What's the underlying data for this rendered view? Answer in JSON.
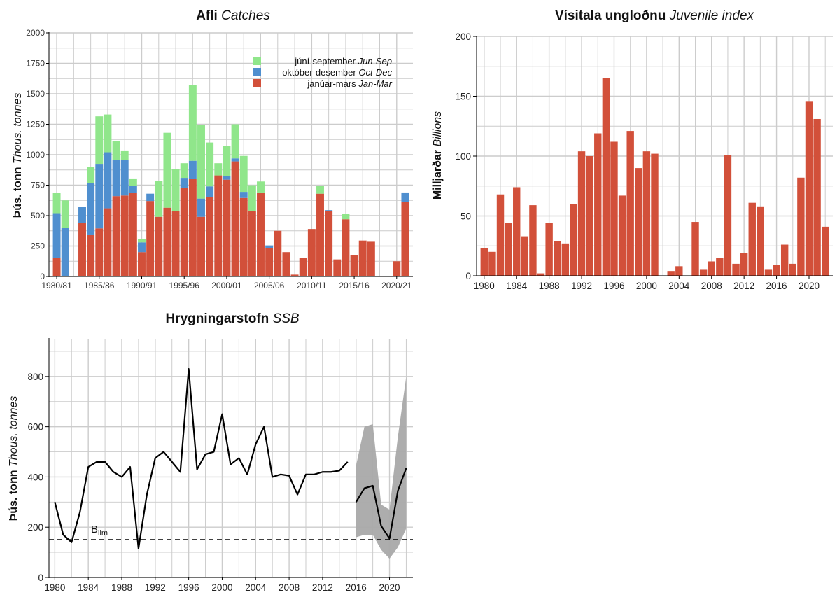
{
  "colors": {
    "jan_mar": "#d2503a",
    "oct_dec": "#4f8fcf",
    "jun_sep": "#90e68b",
    "juvenile": "#d2503a",
    "ssb_line": "#000000",
    "ssb_band": "#a9a9a9",
    "grid": "#cccccc",
    "axis": "#000000"
  },
  "chart_data": [
    {
      "type": "bar",
      "stacked": true,
      "title": "Afli",
      "title_italic": "Catches",
      "ylabel": "Þús. tonn",
      "ylabel_italic": "Thous. tonnes",
      "ylim": [
        0,
        2000
      ],
      "yticks": [
        "0",
        "250",
        "500",
        "750",
        "1000",
        "1250",
        "1500",
        "1750",
        "2000"
      ],
      "xtick_labels": [
        "1980/81",
        "1985/86",
        "1990/91",
        "1995/96",
        "2000/01",
        "2005/06",
        "2010/11",
        "2015/16",
        "2020/21"
      ],
      "legend": {
        "position": "top-right",
        "entries": [
          {
            "label": "júní-september",
            "label_italic": "Jun-Sep",
            "series": "jun_sep"
          },
          {
            "label": "október-desember",
            "label_italic": "Oct-Dec",
            "series": "oct_dec"
          },
          {
            "label": "janúar-mars",
            "label_italic": "Jan-Mar",
            "series": "jan_mar"
          }
        ]
      },
      "categories": [
        "1980/81",
        "1981/82",
        "1982/83",
        "1983/84",
        "1984/85",
        "1985/86",
        "1986/87",
        "1987/88",
        "1988/89",
        "1989/90",
        "1990/91",
        "1991/92",
        "1992/93",
        "1993/94",
        "1994/95",
        "1995/96",
        "1996/97",
        "1997/98",
        "1998/99",
        "1999/00",
        "2000/01",
        "2001/02",
        "2002/03",
        "2003/04",
        "2004/05",
        "2005/06",
        "2006/07",
        "2007/08",
        "2008/09",
        "2009/10",
        "2010/11",
        "2011/12",
        "2012/13",
        "2013/14",
        "2014/15",
        "2015/16",
        "2016/17",
        "2017/18",
        "2018/19",
        "2019/20",
        "2020/21",
        "2021/22"
      ],
      "series": [
        {
          "key": "jan_mar",
          "values": [
            155,
            0,
            0,
            440,
            345,
            395,
            560,
            660,
            665,
            685,
            200,
            620,
            490,
            565,
            540,
            730,
            800,
            490,
            650,
            830,
            795,
            945,
            645,
            540,
            690,
            235,
            375,
            200,
            15,
            150,
            390,
            680,
            540,
            140,
            470,
            175,
            295,
            285,
            0,
            0,
            125,
            610
          ]
        },
        {
          "key": "oct_dec",
          "values": [
            365,
            400,
            0,
            130,
            425,
            530,
            460,
            295,
            290,
            60,
            80,
            60,
            0,
            0,
            0,
            80,
            150,
            150,
            90,
            0,
            30,
            25,
            50,
            0,
            0,
            20,
            0,
            0,
            0,
            0,
            0,
            0,
            5,
            0,
            0,
            0,
            0,
            0,
            0,
            0,
            0,
            80
          ]
        },
        {
          "key": "jun_sep",
          "values": [
            165,
            225,
            0,
            0,
            130,
            390,
            310,
            160,
            80,
            60,
            30,
            0,
            295,
            615,
            340,
            120,
            620,
            605,
            360,
            100,
            245,
            280,
            295,
            210,
            90,
            0,
            0,
            0,
            0,
            0,
            0,
            65,
            0,
            0,
            45,
            0,
            0,
            0,
            0,
            0,
            0,
            0
          ]
        }
      ]
    },
    {
      "type": "bar",
      "title": "Vísitala ungloðnu",
      "title_italic": "Juvenile index",
      "ylabel": "Milljarðar",
      "ylabel_italic": "Billions",
      "ylim": [
        0,
        200
      ],
      "yticks": [
        "0",
        "50",
        "100",
        "150",
        "200"
      ],
      "xtick_labels": [
        "1980",
        "1984",
        "1988",
        "1992",
        "1996",
        "2000",
        "2004",
        "2008",
        "2012",
        "2016",
        "2020"
      ],
      "x": [
        1980,
        1981,
        1982,
        1983,
        1984,
        1985,
        1986,
        1987,
        1988,
        1989,
        1990,
        1991,
        1992,
        1993,
        1994,
        1995,
        1996,
        1997,
        1998,
        1999,
        2000,
        2001,
        2002,
        2003,
        2004,
        2005,
        2006,
        2007,
        2008,
        2009,
        2010,
        2011,
        2012,
        2013,
        2014,
        2015,
        2016,
        2017,
        2018,
        2019,
        2020,
        2021,
        2022
      ],
      "values": [
        23,
        20,
        68,
        44,
        74,
        33,
        59,
        2,
        44,
        29,
        27,
        60,
        104,
        100,
        119,
        165,
        112,
        67,
        121,
        90,
        104,
        102,
        0,
        4,
        8,
        0,
        45,
        5,
        12,
        15,
        101,
        10,
        19,
        61,
        58,
        5,
        9,
        26,
        10,
        82,
        146,
        131,
        41
      ]
    },
    {
      "type": "line",
      "title": "Hrygningarstofn",
      "title_italic": "SSB",
      "ylabel": "Þús. tonn",
      "ylabel_italic": "Thous. tonnes",
      "ylim": [
        0,
        950
      ],
      "yticks": [
        "0",
        "200",
        "400",
        "600",
        "800"
      ],
      "xtick_labels": [
        "1980",
        "1984",
        "1988",
        "1992",
        "1996",
        "2000",
        "2004",
        "2008",
        "2012",
        "2016",
        "2020"
      ],
      "reference_line": {
        "label": "B",
        "label_sub": "lim",
        "value": 150,
        "style": "dashed"
      },
      "series": [
        {
          "key": "historic",
          "x": [
            1980,
            1981,
            1982,
            1983,
            1984,
            1985,
            1986,
            1987,
            1988,
            1989,
            1990,
            1991,
            1992,
            1993,
            1994,
            1995,
            1996,
            1997,
            1998,
            1999,
            2000,
            2001,
            2002,
            2003,
            2004,
            2005,
            2006,
            2007,
            2008,
            2009,
            2010,
            2011,
            2012,
            2013,
            2014,
            2015
          ],
          "y": [
            300,
            170,
            140,
            260,
            440,
            460,
            460,
            420,
            400,
            440,
            115,
            330,
            475,
            500,
            460,
            420,
            830,
            430,
            490,
            500,
            650,
            450,
            475,
            410,
            530,
            600,
            400,
            410,
            405,
            330,
            410,
            410,
            420,
            420,
            425,
            460
          ]
        },
        {
          "key": "recent",
          "x": [
            2016,
            2017,
            2018,
            2019,
            2020,
            2021,
            2022
          ],
          "y": [
            300,
            355,
            365,
            205,
            155,
            345,
            435
          ]
        }
      ],
      "band": {
        "x": [
          2016,
          2017,
          2018,
          2019,
          2020,
          2021,
          2022
        ],
        "lower": [
          160,
          170,
          170,
          110,
          75,
          120,
          195
        ],
        "upper": [
          445,
          600,
          610,
          290,
          270,
          560,
          800
        ]
      }
    }
  ]
}
